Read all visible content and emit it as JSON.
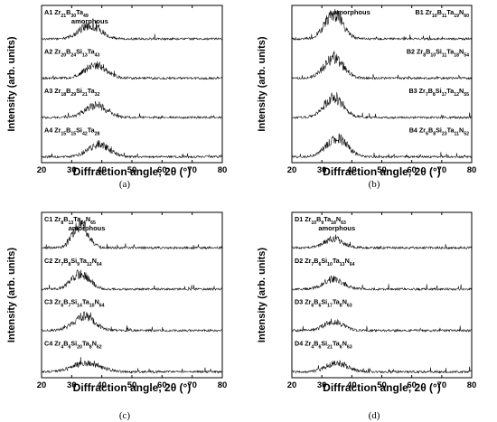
{
  "chart_data": [
    {
      "type": "line",
      "panel_label": "(a)",
      "xlabel": "Diffraction angle, 2θ (°)",
      "ylabel": "Intensity (arb. units)",
      "xlim": [
        20,
        80
      ],
      "xticks": [
        "20",
        "30",
        "40",
        "50",
        "60",
        "70",
        "80"
      ],
      "annotation": {
        "text": "amorphous",
        "x": 36,
        "series_index": 0
      },
      "label_side": "left",
      "series": [
        {
          "name": "A1 Zr21B30Ta49",
          "label": {
            "sample": "A1",
            "parts": [
              [
                "Zr",
                "21"
              ],
              [
                "B",
                "30"
              ],
              [
                "Ta",
                "49"
              ]
            ]
          },
          "peak_center": 36,
          "peak_height": 0.55,
          "peak_width": 3.5
        },
        {
          "name": "A2 Zr20B24Si13Ta43",
          "label": {
            "sample": "A2",
            "parts": [
              [
                "Zr",
                "20"
              ],
              [
                "B",
                "24"
              ],
              [
                "Si",
                "13"
              ],
              [
                "Ta",
                "43"
              ]
            ]
          },
          "peak_center": 38,
          "peak_height": 0.55,
          "peak_width": 3.5
        },
        {
          "name": "A3 Zr18B29Si21Ta32",
          "label": {
            "sample": "A3",
            "parts": [
              [
                "Zr",
                "18"
              ],
              [
                "B",
                "29"
              ],
              [
                "Si",
                "21"
              ],
              [
                "Ta",
                "32"
              ]
            ]
          },
          "peak_center": 38,
          "peak_height": 0.5,
          "peak_width": 3.5
        },
        {
          "name": "A4 Zr15B15Si42Ta28",
          "label": {
            "sample": "A4",
            "parts": [
              [
                "Zr",
                "15"
              ],
              [
                "B",
                "15"
              ],
              [
                "Si",
                "42"
              ],
              [
                "Ta",
                "28"
              ]
            ]
          },
          "peak_center": 39,
          "peak_height": 0.5,
          "peak_width": 3.5
        }
      ]
    },
    {
      "type": "line",
      "panel_label": "(b)",
      "xlabel": "Diffraction angle, 2θ (°)",
      "ylabel": "Intensity (arb. units)",
      "xlim": [
        20,
        80
      ],
      "xticks": [
        "20",
        "30",
        "40",
        "50",
        "60",
        "70",
        "80"
      ],
      "annotation": {
        "text": "amorphous",
        "x": 40,
        "series_index": 0
      },
      "label_side": "right",
      "series": [
        {
          "name": "B1 Zr10B11Ta19N60",
          "label": {
            "sample": "B1",
            "parts": [
              [
                "Zr",
                "10"
              ],
              [
                "B",
                "11"
              ],
              [
                "Ta",
                "19"
              ],
              [
                "N",
                "60"
              ]
            ]
          },
          "peak_center": 34,
          "peak_height": 1.0,
          "peak_width": 3.0
        },
        {
          "name": "B2 Zr8B10Si11Ta18N54",
          "label": {
            "sample": "B2",
            "parts": [
              [
                "Zr",
                "8"
              ],
              [
                "B",
                "10"
              ],
              [
                "Si",
                "11"
              ],
              [
                "Ta",
                "18"
              ],
              [
                "N",
                "54"
              ]
            ]
          },
          "peak_center": 34,
          "peak_height": 0.8,
          "peak_width": 3.2
        },
        {
          "name": "B3 Zr7B8Si17Ta12N55",
          "label": {
            "sample": "B3",
            "parts": [
              [
                "Zr",
                "7"
              ],
              [
                "B",
                "8"
              ],
              [
                "Si",
                "17"
              ],
              [
                "Ta",
                "12"
              ],
              [
                "N",
                "55"
              ]
            ]
          },
          "peak_center": 34,
          "peak_height": 0.8,
          "peak_width": 3.2
        },
        {
          "name": "B4 Zr6B8Si23Ta11N52",
          "label": {
            "sample": "B4",
            "parts": [
              [
                "Zr",
                "6"
              ],
              [
                "B",
                "8"
              ],
              [
                "Si",
                "23"
              ],
              [
                "Ta",
                "11"
              ],
              [
                "N",
                "52"
              ]
            ]
          },
          "peak_center": 35,
          "peak_height": 0.75,
          "peak_width": 3.5
        }
      ]
    },
    {
      "type": "line",
      "panel_label": "(c)",
      "xlabel": "Diffraction angle, 2θ (°)",
      "ylabel": "Intensity (arb. units)",
      "xlim": [
        20,
        80
      ],
      "xticks": [
        "20",
        "30",
        "40",
        "50",
        "60",
        "70",
        "80"
      ],
      "annotation": {
        "text": "amorphous",
        "x": 35,
        "series_index": 0
      },
      "label_side": "left",
      "series": [
        {
          "name": "C1 Zr8B13Ta14N65",
          "label": {
            "sample": "C1",
            "parts": [
              [
                "Zr",
                "8"
              ],
              [
                "B",
                "13"
              ],
              [
                "Ta",
                "14"
              ],
              [
                "N",
                "65"
              ]
            ]
          },
          "peak_center": 33,
          "peak_height": 0.9,
          "peak_width": 2.5
        },
        {
          "name": "C2 Zr7B8Si9Ta12N64",
          "label": {
            "sample": "C2",
            "parts": [
              [
                "Zr",
                "7"
              ],
              [
                "B",
                "8"
              ],
              [
                "Si",
                "9"
              ],
              [
                "Ta",
                "12"
              ],
              [
                "N",
                "64"
              ]
            ]
          },
          "peak_center": 33,
          "peak_height": 0.6,
          "peak_width": 3.0
        },
        {
          "name": "C3 Zr6B7Si14Ta10N64",
          "label": {
            "sample": "C3",
            "parts": [
              [
                "Zr",
                "6"
              ],
              [
                "B",
                "7"
              ],
              [
                "Si",
                "14"
              ],
              [
                "Ta",
                "10"
              ],
              [
                "N",
                "64"
              ]
            ]
          },
          "peak_center": 34,
          "peak_height": 0.55,
          "peak_width": 3.5
        },
        {
          "name": "C4 Zr4B6Si20Ta8N62",
          "label": {
            "sample": "C4",
            "parts": [
              [
                "Zr",
                "4"
              ],
              [
                "B",
                "6"
              ],
              [
                "Si",
                "20"
              ],
              [
                "Ta",
                "8"
              ],
              [
                "N",
                "62"
              ]
            ]
          },
          "peak_center": 35,
          "peak_height": 0.35,
          "peak_width": 4.5
        }
      ]
    },
    {
      "type": "line",
      "panel_label": "(d)",
      "xlabel": "Diffraction angle, 2θ (°)",
      "ylabel": "Intensity (arb. units)",
      "xlim": [
        20,
        80
      ],
      "xticks": [
        "20",
        "30",
        "40",
        "50",
        "60",
        "70",
        "80"
      ],
      "annotation": {
        "text": "amorphous",
        "x": 35,
        "series_index": 0
      },
      "label_side": "left",
      "series": [
        {
          "name": "D1 Zr10B9Ta18N63",
          "label": {
            "sample": "D1",
            "parts": [
              [
                "Zr",
                "10"
              ],
              [
                "B",
                "9"
              ],
              [
                "Ta",
                "18"
              ],
              [
                "N",
                "63"
              ]
            ]
          },
          "peak_center": 34,
          "peak_height": 0.35,
          "peak_width": 3.0
        },
        {
          "name": "D2 Zr7B6Si10Ta13N64",
          "label": {
            "sample": "D2",
            "parts": [
              [
                "Zr",
                "7"
              ],
              [
                "B",
                "6"
              ],
              [
                "Si",
                "10"
              ],
              [
                "Ta",
                "13"
              ],
              [
                "N",
                "64"
              ]
            ]
          },
          "peak_center": 34,
          "peak_height": 0.4,
          "peak_width": 3.2
        },
        {
          "name": "D3 Zr6B6Si17Ta8N63",
          "label": {
            "sample": "D3",
            "parts": [
              [
                "Zr",
                "6"
              ],
              [
                "B",
                "6"
              ],
              [
                "Si",
                "17"
              ],
              [
                "Ta",
                "8"
              ],
              [
                "N",
                "63"
              ]
            ]
          },
          "peak_center": 34,
          "peak_height": 0.35,
          "peak_width": 3.2
        },
        {
          "name": "D4 Zr4B6Si21Ta6N63",
          "label": {
            "sample": "D4",
            "parts": [
              [
                "Zr",
                "4"
              ],
              [
                "B",
                "6"
              ],
              [
                "Si",
                "21"
              ],
              [
                "Ta",
                "6"
              ],
              [
                "N",
                "63"
              ]
            ]
          },
          "peak_center": 35,
          "peak_height": 0.35,
          "peak_width": 3.5
        }
      ]
    }
  ]
}
